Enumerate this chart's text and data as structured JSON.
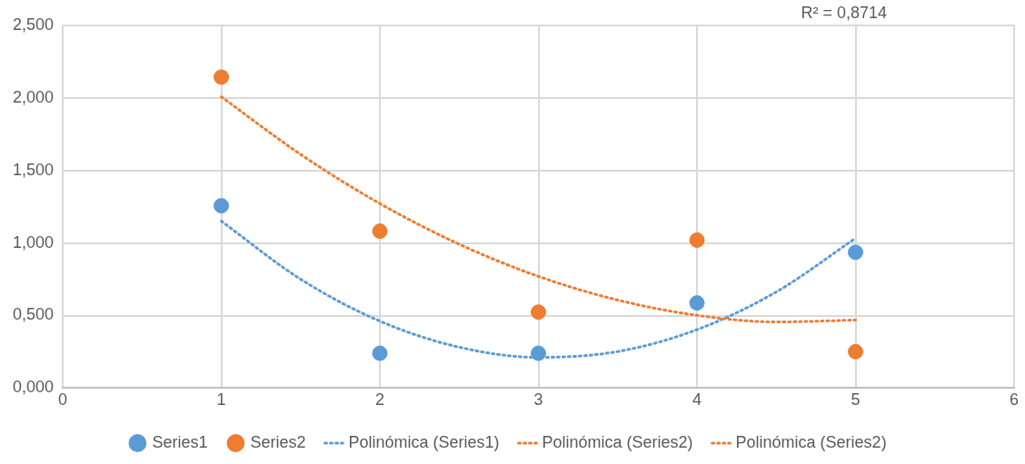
{
  "chart_data": {
    "type": "scatter",
    "annotations": [
      "R² = 0,8714"
    ],
    "xlim": [
      0,
      6
    ],
    "xticks": [
      0,
      1,
      2,
      3,
      4,
      5,
      6
    ],
    "ylim": [
      0,
      2.5
    ],
    "yticks": [
      {
        "value": 0,
        "label": "0,000"
      },
      {
        "value": 0.5,
        "label": "0,500"
      },
      {
        "value": 1,
        "label": "1,000"
      },
      {
        "value": 1.5,
        "label": "1,500"
      },
      {
        "value": 2,
        "label": "2,000"
      },
      {
        "value": 2.5,
        "label": "2,500"
      }
    ],
    "grid": true,
    "legend": "bottom",
    "series": [
      {
        "name": "Series1",
        "marker": "circle",
        "color": "#5b9bd5",
        "x": [
          1,
          2,
          3,
          4,
          5
        ],
        "values": [
          1.257,
          0.24,
          0.24,
          0.587,
          0.936
        ]
      },
      {
        "name": "Series2",
        "marker": "circle",
        "color": "#ed7d31",
        "x": [
          1,
          2,
          3,
          4,
          5
        ],
        "values": [
          2.144,
          1.082,
          0.524,
          1.02,
          0.251
        ]
      },
      {
        "name": "Polinómica (Series1)",
        "type": "line",
        "marker": "none",
        "line_style": "dotted",
        "color": "#5b9bd5",
        "x": [
          1,
          1.5,
          2,
          2.5,
          3,
          3.5,
          4,
          4.5,
          5
        ],
        "values": [
          1.151,
          0.751,
          0.462,
          0.282,
          0.212,
          0.252,
          0.403,
          0.663,
          1.033
        ]
      },
      {
        "name": "Polinómica (Series2)",
        "type": "line",
        "marker": "none",
        "line_style": "dotted",
        "color": "#ed7d31",
        "x": [
          1,
          1.5,
          2,
          2.5,
          3,
          3.5,
          4,
          4.5,
          5
        ],
        "values": [
          2.008,
          1.611,
          1.272,
          0.992,
          0.77,
          0.607,
          0.502,
          0.456,
          0.469
        ]
      },
      {
        "name": "Polinómica (Series2)",
        "type": "line",
        "marker": "none",
        "line_style": "dotted",
        "color": "#ed7d31"
      }
    ]
  }
}
